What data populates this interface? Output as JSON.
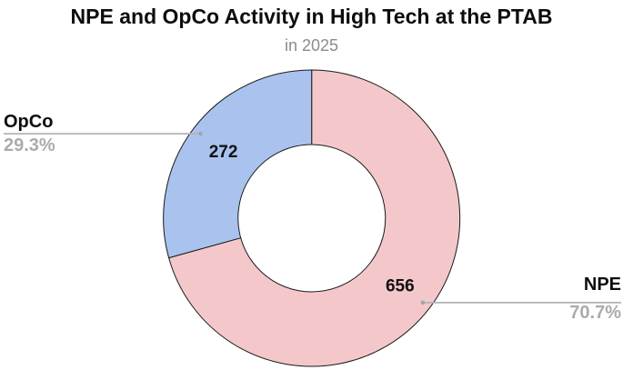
{
  "chart_data": {
    "type": "pie",
    "donut": true,
    "hole_ratio": 0.5,
    "start_angle": "top",
    "direction": "clockwise",
    "title": "NPE and OpCo Activity in High Tech at the PTAB",
    "subtitle": "in 2025",
    "legend": "none",
    "slices": [
      {
        "label": "NPE",
        "value": 656,
        "percent": "70.7%",
        "color": "#f4c8cb",
        "callout_side": "right"
      },
      {
        "label": "OpCo",
        "value": 272,
        "percent": "29.3%",
        "color": "#a9c3ee",
        "callout_side": "left"
      }
    ],
    "colors": {
      "slice_border": "#1a1a1a",
      "leader_line": "#b3b3b3",
      "leader_dot": "#a6a6a6",
      "value_text": "#111111",
      "percent_text": "#ababab",
      "subtitle_text": "#8c8c8c",
      "title_text": "#0d0d0d",
      "background": "#ffffff"
    }
  }
}
